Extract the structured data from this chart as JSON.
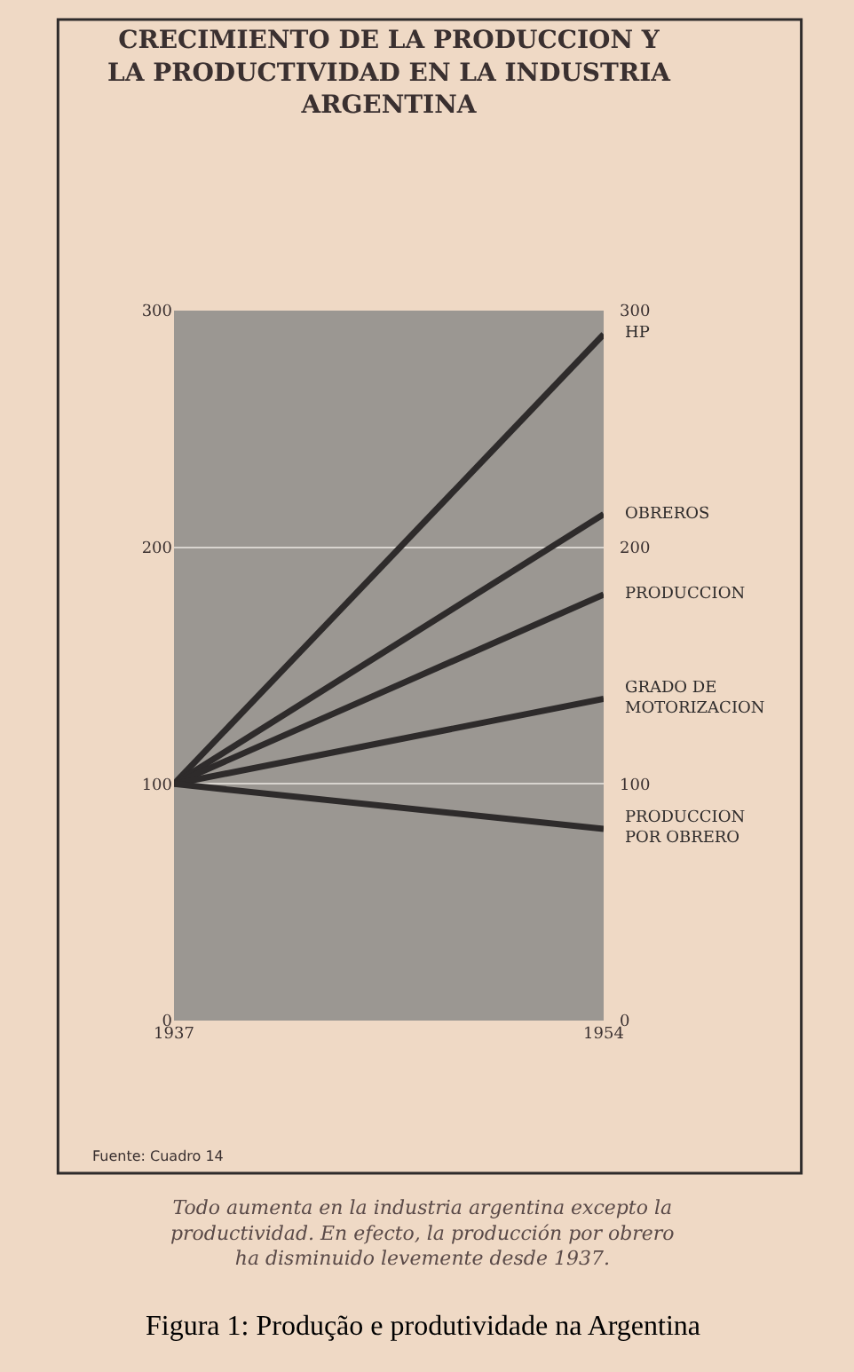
{
  "chart_data": {
    "type": "line",
    "title": "CRECIMIENTO DE LA PRODUCCION Y LA PRODUCTIVIDAD EN LA INDUSTRIA ARGENTINA",
    "x": [
      1937,
      1954
    ],
    "xlim": [
      1937,
      1954
    ],
    "xticks": [
      1937,
      1954
    ],
    "ylim": [
      0,
      300
    ],
    "yticks": [
      0,
      100,
      200,
      300
    ],
    "y2lim": [
      0,
      300
    ],
    "y2ticks": [
      0,
      100,
      200,
      300
    ],
    "grid": "y",
    "marker": "none",
    "line_style": "solid",
    "series": [
      {
        "name": "HP",
        "color": "#2e2b2b",
        "values": [
          100,
          290
        ]
      },
      {
        "name": "OBREROS",
        "color": "#2e2b2b",
        "values": [
          100,
          214
        ]
      },
      {
        "name": "PRODUCCION",
        "color": "#2e2b2b",
        "values": [
          100,
          180
        ]
      },
      {
        "name": "GRADO DE MOTORIZACION",
        "color": "#2e2b2b",
        "values": [
          100,
          136
        ]
      },
      {
        "name": "PRODUCCION POR OBRERO",
        "color": "#2e2b2b",
        "values": [
          100,
          81
        ]
      }
    ],
    "annotations": [
      "Fuente: Cuadro 14",
      "Todo aumenta en la industria argentina excepto la productividad. En efecto, la producción por obrero ha disminuido levemente desde 1937.",
      "Figura 1: Produção e produtividade na Argentina"
    ]
  }
}
